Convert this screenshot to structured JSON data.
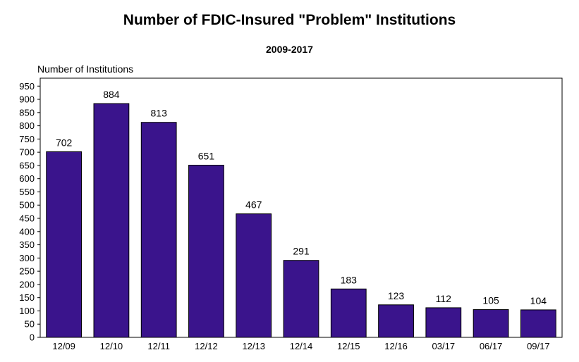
{
  "chart_data": {
    "type": "bar",
    "title": "Number of FDIC-Insured \"Problem\" Institutions",
    "subtitle": "2009-2017",
    "ylabel": "Number of Institutions",
    "xlabel": "",
    "ylim": [
      0,
      980
    ],
    "yticks": [
      0,
      50,
      100,
      150,
      200,
      250,
      300,
      350,
      400,
      450,
      500,
      550,
      600,
      650,
      700,
      750,
      800,
      850,
      900,
      950
    ],
    "categories": [
      "12/09",
      "12/10",
      "12/11",
      "12/12",
      "12/13",
      "12/14",
      "12/15",
      "12/16",
      "03/17",
      "06/17",
      "09/17"
    ],
    "values": [
      702,
      884,
      813,
      651,
      467,
      291,
      183,
      123,
      112,
      105,
      104
    ],
    "bar_color": "#3a148c",
    "grid": false
  }
}
